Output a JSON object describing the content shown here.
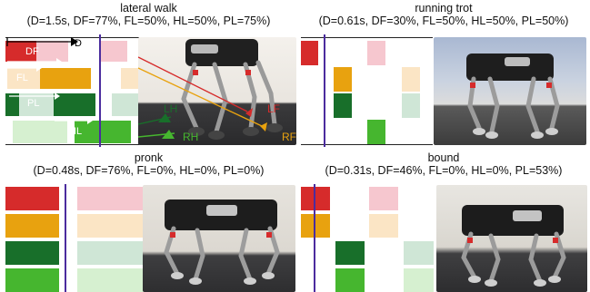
{
  "colors": {
    "RF": "#d62b2b",
    "LF": "#e8a20f",
    "LH": "#186f2a",
    "RH": "#46b62f",
    "RF_light": "#f6c7cf",
    "LF_light": "#fbe5c5",
    "LH_light": "#cfe6d6",
    "RH_light": "#d6f0d0",
    "time_marker": "#4b2c9e"
  },
  "panels": [
    {
      "id": "lateral-walk",
      "name": "lateral walk",
      "params": "(D=1.5s, DF=77%, FL=50%, HL=50%, PL=75%)",
      "annotations": {
        "D": "D",
        "DF": "DF",
        "FL": "FL",
        "PL": "PL",
        "HL": "HL",
        "LH": "LH",
        "RH": "RH",
        "LF": "LF",
        "RF": "RF"
      }
    },
    {
      "id": "running-trot",
      "name": "running trot",
      "params": "(D=0.61s, DF=30%, FL=50%, HL=50%, PL=50%)"
    },
    {
      "id": "pronk",
      "name": "pronk",
      "params": "(D=0.48s, DF=76%, FL=0%, HL=0%, PL=0%)"
    },
    {
      "id": "bound",
      "name": "bound",
      "params": "(D=0.31s, DF=46%, FL=0%, HL=0%, PL=53%)"
    }
  ]
}
